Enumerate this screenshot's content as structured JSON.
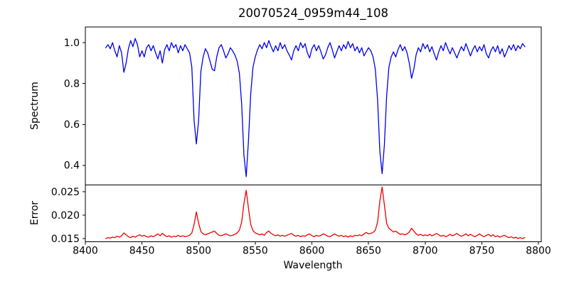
{
  "chart_data": {
    "type": "line",
    "title": "20070524_0959m44_108",
    "xlabel": "Wavelength",
    "grid": false,
    "legend": null,
    "xlim": [
      8400,
      8802.5
    ],
    "x_ticks": [
      8400,
      8450,
      8500,
      8550,
      8600,
      8650,
      8700,
      8750,
      8800
    ],
    "x_tick_labels": [
      "8400",
      "8450",
      "8500",
      "8550",
      "8600",
      "8650",
      "8700",
      "8750",
      "8800"
    ],
    "x_start": 8418,
    "x_step": 2,
    "panels": [
      {
        "name": "spectrum",
        "ylabel": "Spectrum",
        "color": "#0000ee",
        "ylim": [
          0.3045,
          1.0763
        ],
        "y_ticks": [
          0.4,
          0.6,
          0.8,
          1.0
        ],
        "y_tick_labels": [
          "0.4",
          "0.6",
          "0.8",
          "1.0"
        ],
        "features": "Ca II triplet absorption lines at 8498 (depth 0.51), 8542 (depth 0.35), 8662 (depth 0.36)",
        "values": [
          0.975,
          0.99,
          0.97,
          1.0,
          0.96,
          0.93,
          0.985,
          0.95,
          0.855,
          0.9,
          0.97,
          1.01,
          0.98,
          1.02,
          0.99,
          0.93,
          0.96,
          0.93,
          0.975,
          0.99,
          0.96,
          0.985,
          0.95,
          0.92,
          0.96,
          0.9,
          0.965,
          0.99,
          0.96,
          1.0,
          0.975,
          0.99,
          0.95,
          0.985,
          0.96,
          0.99,
          0.97,
          0.95,
          0.88,
          0.62,
          0.505,
          0.62,
          0.86,
          0.93,
          0.97,
          0.95,
          0.91,
          0.87,
          0.862,
          0.93,
          0.975,
          0.99,
          0.96,
          0.925,
          0.945,
          0.975,
          0.96,
          0.94,
          0.91,
          0.85,
          0.7,
          0.45,
          0.345,
          0.52,
          0.75,
          0.88,
          0.93,
          0.965,
          0.99,
          0.97,
          1.0,
          0.975,
          1.01,
          0.98,
          0.955,
          0.985,
          0.96,
          1.0,
          0.97,
          0.99,
          0.96,
          0.94,
          0.915,
          0.96,
          0.985,
          0.96,
          1.0,
          0.975,
          0.995,
          0.95,
          0.925,
          0.97,
          0.99,
          0.96,
          0.985,
          0.955,
          0.92,
          0.94,
          0.975,
          1.0,
          0.965,
          0.925,
          0.955,
          0.985,
          0.96,
          0.99,
          0.97,
          1.005,
          0.975,
          0.995,
          0.96,
          0.98,
          0.95,
          0.975,
          0.935,
          0.955,
          0.975,
          0.96,
          0.93,
          0.87,
          0.72,
          0.47,
          0.36,
          0.5,
          0.74,
          0.88,
          0.93,
          0.955,
          0.93,
          0.965,
          0.99,
          0.96,
          0.98,
          0.95,
          0.9,
          0.825,
          0.87,
          0.94,
          0.975,
          0.955,
          0.995,
          0.97,
          0.99,
          0.955,
          0.98,
          0.945,
          0.915,
          0.955,
          0.985,
          0.96,
          1.0,
          0.97,
          0.945,
          0.975,
          0.95,
          0.925,
          0.955,
          0.98,
          0.96,
          0.995,
          0.965,
          0.935,
          0.965,
          0.985,
          0.955,
          0.98,
          0.96,
          0.99,
          0.945,
          0.925,
          0.96,
          0.98,
          0.955,
          0.985,
          0.945,
          0.97,
          0.93,
          0.955,
          0.985,
          0.965,
          0.99,
          0.96,
          0.985,
          0.97,
          0.995,
          0.98
        ]
      },
      {
        "name": "error",
        "ylabel": "Error",
        "color": "#ee0000",
        "ylim": [
          0.01432,
          0.02644
        ],
        "y_ticks": [
          0.015,
          0.02,
          0.025
        ],
        "y_tick_labels": [
          "0.015",
          "0.020",
          "0.025"
        ],
        "features": "error spikes at 8498 (0.0207), 8542 (0.0253), 8662 (0.0260), small bump at 8688 (0.0172)",
        "values": [
          0.015,
          0.0152,
          0.0151,
          0.0153,
          0.0152,
          0.0155,
          0.0153,
          0.0156,
          0.0162,
          0.0158,
          0.0154,
          0.0152,
          0.0155,
          0.0153,
          0.0156,
          0.0158,
          0.0155,
          0.0157,
          0.0154,
          0.0153,
          0.0156,
          0.0154,
          0.0157,
          0.016,
          0.0156,
          0.0161,
          0.0157,
          0.0154,
          0.0156,
          0.0153,
          0.0155,
          0.0154,
          0.0157,
          0.0154,
          0.0156,
          0.0154,
          0.0155,
          0.0157,
          0.0162,
          0.018,
          0.0207,
          0.0183,
          0.0165,
          0.016,
          0.0158,
          0.016,
          0.0162,
          0.0164,
          0.0166,
          0.0161,
          0.0157,
          0.0156,
          0.0158,
          0.016,
          0.0158,
          0.0156,
          0.0157,
          0.0159,
          0.0162,
          0.0168,
          0.0185,
          0.0225,
          0.0253,
          0.0215,
          0.018,
          0.0167,
          0.0162,
          0.016,
          0.0158,
          0.016,
          0.0157,
          0.0163,
          0.0166,
          0.0161,
          0.0158,
          0.0156,
          0.0158,
          0.0155,
          0.0157,
          0.0155,
          0.0157,
          0.0159,
          0.0161,
          0.0157,
          0.0155,
          0.0157,
          0.0154,
          0.0156,
          0.0155,
          0.0158,
          0.016,
          0.0156,
          0.0154,
          0.0157,
          0.0155,
          0.0157,
          0.016,
          0.0158,
          0.0155,
          0.0154,
          0.0157,
          0.016,
          0.0157,
          0.0155,
          0.0157,
          0.0154,
          0.0156,
          0.0153,
          0.0156,
          0.0154,
          0.0157,
          0.0156,
          0.0158,
          0.0156,
          0.016,
          0.0163,
          0.016,
          0.0161,
          0.0163,
          0.0168,
          0.0185,
          0.023,
          0.026,
          0.0222,
          0.0182,
          0.0172,
          0.0168,
          0.0164,
          0.0166,
          0.0162,
          0.0159,
          0.016,
          0.0158,
          0.016,
          0.0164,
          0.0172,
          0.0166,
          0.016,
          0.0157,
          0.0159,
          0.0156,
          0.0158,
          0.0156,
          0.0159,
          0.0156,
          0.0158,
          0.0161,
          0.0158,
          0.0155,
          0.0157,
          0.0154,
          0.0156,
          0.0159,
          0.0156,
          0.0158,
          0.0161,
          0.0157,
          0.0155,
          0.0157,
          0.016,
          0.0156,
          0.0159,
          0.0156,
          0.0154,
          0.0157,
          0.016,
          0.0156,
          0.0154,
          0.0157,
          0.0159,
          0.0155,
          0.0158,
          0.0154,
          0.0156,
          0.0153,
          0.0155,
          0.0157,
          0.0154,
          0.0152,
          0.0154,
          0.0151,
          0.0153,
          0.015,
          0.0152,
          0.015,
          0.0152
        ]
      }
    ]
  }
}
